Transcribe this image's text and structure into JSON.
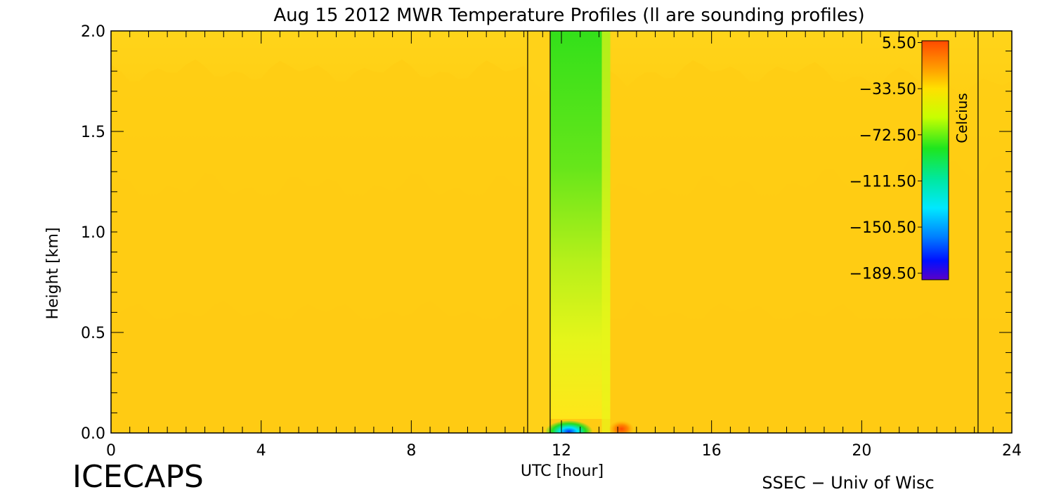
{
  "chart_data": {
    "type": "heatmap",
    "title": "Aug 15 2012 MWR Temperature Profiles (ll are sounding profiles)",
    "xlabel": "UTC [hour]",
    "ylabel": "Height [km]",
    "xlim": [
      0,
      24
    ],
    "ylim": [
      0,
      2
    ],
    "x_ticks": [
      "0",
      "4",
      "8",
      "12",
      "16",
      "20",
      "24"
    ],
    "y_ticks": [
      "0.0",
      "0.5",
      "1.0",
      "1.5",
      "2.0"
    ],
    "x_minor_step": 0.5,
    "y_minor_step": 0.1,
    "colorbar": {
      "label": "Celcius",
      "ticks": [
        "5.50",
        "−33.50",
        "−72.50",
        "−111.50",
        "−150.50",
        "−189.50"
      ],
      "range": [
        -195,
        7
      ],
      "tick_values": [
        5.5,
        -33.5,
        -72.5,
        -111.5,
        -150.5,
        -189.5
      ]
    },
    "sounding_times": [
      11.1,
      11.7,
      23.1
    ],
    "temperature_bands": [
      {
        "height": 0.0,
        "value": -12
      },
      {
        "height": 0.5,
        "value": -14
      },
      {
        "height": 1.0,
        "value": -18
      },
      {
        "height": 1.5,
        "value": -24
      },
      {
        "height": 2.0,
        "value": -26
      }
    ],
    "anomalies": [
      {
        "label": "cold column",
        "x_range": [
          11.7,
          13.3
        ],
        "height_range": [
          0.0,
          2.0
        ],
        "min_value": -90
      },
      {
        "label": "cold spot",
        "x": 12.2,
        "height": 0.0,
        "value": -170
      },
      {
        "label": "warm spot",
        "x": 13.6,
        "height": 0.02,
        "value": 2
      }
    ]
  },
  "footer": {
    "left": "ICECAPS",
    "right": "SSEC − Univ of Wisc"
  },
  "colors": {
    "warm": "#f5a623",
    "mid": "#ffd21a",
    "cold_green": "#22dd22",
    "cyan": "#00e5ff",
    "blue": "#0033ff",
    "violet": "#5a00c8"
  }
}
